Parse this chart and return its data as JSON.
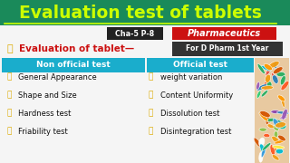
{
  "title": "Evaluation test of tablets",
  "title_bg": "#1a8a5a",
  "title_color": "#ccff00",
  "cha_label": "Cha-5 P-8",
  "cha_bg": "#222222",
  "cha_color": "#ffffff",
  "pharma_label": "Pharmaceutics",
  "pharma_bg": "#cc1111",
  "pharma_color": "#ffffff",
  "dpharm_label": "For D Pharm 1st Year",
  "dpharm_bg": "#333333",
  "dpharm_color": "#ffffff",
  "eval_text": "Evaluation of tablet—",
  "eval_color": "#cc1111",
  "bullet_color": "#ddaa00",
  "non_official_header": "Non official test",
  "non_official_bg": "#1aadcc",
  "non_official_color": "#ffffff",
  "official_header": "Official test",
  "official_bg": "#1aadcc",
  "official_color": "#ffffff",
  "non_official_items": [
    "General Appearance",
    "Shape and Size",
    "Hardness test",
    "Friability test"
  ],
  "official_items": [
    "weight variation",
    "Content Uniformity",
    "Dissolution test",
    "Disintegration test"
  ],
  "item_color": "#111111",
  "bg_color": "#f5f5f5",
  "pills_bg": "#e8c9a0",
  "pill_colors": [
    "#e74c3c",
    "#3498db",
    "#2ecc71",
    "#f39c12",
    "#9b59b6",
    "#e67e22",
    "#1abc9c",
    "#e91e63",
    "#ffffff",
    "#ffeb3b",
    "#ff5722",
    "#00bcd4",
    "#8bc34a",
    "#ff9800",
    "#c0392b",
    "#27ae60",
    "#2980b9",
    "#d35400",
    "#8e44ad",
    "#16a085"
  ]
}
